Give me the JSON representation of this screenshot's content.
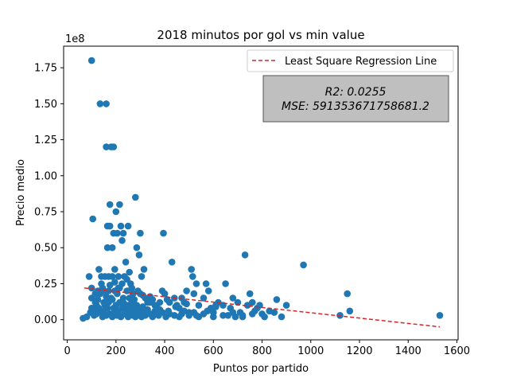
{
  "chart_data": {
    "type": "scatter",
    "title": "2018 minutos por gol vs min value",
    "xlabel": "Puntos por partido",
    "ylabel": "Precio medio",
    "y_offset_label": "1e8",
    "y_scale": 100000000,
    "xlim": [
      -15,
      1605
    ],
    "ylim": [
      -14000000,
      190000000.0
    ],
    "xticks": [
      0,
      200,
      400,
      600,
      800,
      1000,
      1200,
      1400,
      1600
    ],
    "yticks": [
      0,
      25000000,
      50000000,
      75000000,
      100000000,
      125000000,
      150000000,
      175000000
    ],
    "ytick_labels": [
      "0.00",
      "0.25",
      "0.50",
      "0.75",
      "1.00",
      "1.25",
      "1.50",
      "1.75"
    ],
    "grid": false,
    "legend": {
      "placement": "top-right",
      "entries": [
        {
          "label": "Least Square Regression Line",
          "style": "dashed",
          "color": "#d62728"
        }
      ]
    },
    "stats_box": {
      "r2": "R2: 0.0255",
      "mse": "MSE: 591353671758681.2"
    },
    "regression_line": {
      "x": [
        70,
        1530
      ],
      "y": [
        22000000,
        -5000000
      ],
      "color": "#d62728"
    },
    "point_color": "#1f77b4",
    "series": [
      {
        "points": [
          [
            65,
            1000000
          ],
          [
            90,
            30000000
          ],
          [
            100,
            180000000
          ],
          [
            105,
            70000000
          ],
          [
            100,
            15000000
          ],
          [
            95,
            5000000
          ],
          [
            110,
            3000000
          ],
          [
            120,
            10000000
          ],
          [
            125,
            20000000
          ],
          [
            130,
            35000000
          ],
          [
            135,
            150000000
          ],
          [
            140,
            30000000
          ],
          [
            145,
            22000000
          ],
          [
            150,
            12000000
          ],
          [
            155,
            30000000
          ],
          [
            160,
            150000000
          ],
          [
            160,
            120000000
          ],
          [
            165,
            65000000
          ],
          [
            165,
            50000000
          ],
          [
            170,
            30000000
          ],
          [
            170,
            20000000
          ],
          [
            175,
            80000000
          ],
          [
            175,
            65000000
          ],
          [
            180,
            120000000
          ],
          [
            185,
            50000000
          ],
          [
            185,
            30000000
          ],
          [
            190,
            120000000
          ],
          [
            190,
            60000000
          ],
          [
            195,
            35000000
          ],
          [
            195,
            20000000
          ],
          [
            200,
            75000000
          ],
          [
            205,
            60000000
          ],
          [
            210,
            30000000
          ],
          [
            210,
            22000000
          ],
          [
            215,
            80000000
          ],
          [
            220,
            65000000
          ],
          [
            225,
            55000000
          ],
          [
            225,
            25000000
          ],
          [
            230,
            60000000
          ],
          [
            235,
            30000000
          ],
          [
            240,
            40000000
          ],
          [
            245,
            20000000
          ],
          [
            250,
            65000000
          ],
          [
            255,
            33000000
          ],
          [
            260,
            25000000
          ],
          [
            265,
            22000000
          ],
          [
            270,
            18000000
          ],
          [
            280,
            85000000
          ],
          [
            285,
            50000000
          ],
          [
            290,
            20000000
          ],
          [
            295,
            45000000
          ],
          [
            300,
            60000000
          ],
          [
            305,
            30000000
          ],
          [
            310,
            17000000
          ],
          [
            315,
            35000000
          ],
          [
            320,
            15000000
          ],
          [
            330,
            12000000
          ],
          [
            340,
            12000000
          ],
          [
            350,
            14000000
          ],
          [
            360,
            10000000
          ],
          [
            370,
            8000000
          ],
          [
            380,
            7000000
          ],
          [
            390,
            20000000
          ],
          [
            395,
            60000000
          ],
          [
            400,
            18000000
          ],
          [
            410,
            14000000
          ],
          [
            420,
            12000000
          ],
          [
            430,
            40000000
          ],
          [
            440,
            15000000
          ],
          [
            450,
            10000000
          ],
          [
            460,
            8000000
          ],
          [
            470,
            15000000
          ],
          [
            480,
            12000000
          ],
          [
            490,
            20000000
          ],
          [
            500,
            5000000
          ],
          [
            510,
            35000000
          ],
          [
            515,
            30000000
          ],
          [
            520,
            18000000
          ],
          [
            530,
            25000000
          ],
          [
            540,
            10000000
          ],
          [
            560,
            15000000
          ],
          [
            570,
            25000000
          ],
          [
            580,
            20000000
          ],
          [
            590,
            8000000
          ],
          [
            600,
            5000000
          ],
          [
            610,
            10000000
          ],
          [
            620,
            12000000
          ],
          [
            640,
            10000000
          ],
          [
            650,
            25000000
          ],
          [
            660,
            3000000
          ],
          [
            670,
            8000000
          ],
          [
            680,
            15000000
          ],
          [
            690,
            2000000
          ],
          [
            700,
            12000000
          ],
          [
            710,
            5000000
          ],
          [
            720,
            2000000
          ],
          [
            730,
            45000000
          ],
          [
            740,
            10000000
          ],
          [
            750,
            18000000
          ],
          [
            760,
            12000000
          ],
          [
            770,
            6000000
          ],
          [
            780,
            8000000
          ],
          [
            790,
            10000000
          ],
          [
            800,
            4000000
          ],
          [
            810,
            2000000
          ],
          [
            830,
            6000000
          ],
          [
            850,
            5000000
          ],
          [
            860,
            14000000
          ],
          [
            880,
            2000000
          ],
          [
            900,
            10000000
          ],
          [
            970,
            38000000
          ],
          [
            1120,
            3000000
          ],
          [
            1150,
            18000000
          ],
          [
            1160,
            6000000
          ],
          [
            1530,
            3000000
          ],
          [
            80,
            2000000
          ],
          [
            100,
            8000000
          ],
          [
            110,
            6000000
          ],
          [
            115,
            12000000
          ],
          [
            120,
            4000000
          ],
          [
            130,
            8000000
          ],
          [
            135,
            18000000
          ],
          [
            140,
            5000000
          ],
          [
            145,
            2000000
          ],
          [
            150,
            6000000
          ],
          [
            155,
            10000000
          ],
          [
            160,
            3000000
          ],
          [
            165,
            8000000
          ],
          [
            170,
            12000000
          ],
          [
            175,
            4000000
          ],
          [
            180,
            15000000
          ],
          [
            185,
            2000000
          ],
          [
            190,
            8000000
          ],
          [
            195,
            5000000
          ],
          [
            200,
            10000000
          ],
          [
            205,
            3000000
          ],
          [
            210,
            6000000
          ],
          [
            215,
            12000000
          ],
          [
            220,
            2000000
          ],
          [
            225,
            8000000
          ],
          [
            230,
            15000000
          ],
          [
            235,
            4000000
          ],
          [
            240,
            6000000
          ],
          [
            245,
            10000000
          ],
          [
            250,
            2000000
          ],
          [
            255,
            8000000
          ],
          [
            260,
            5000000
          ],
          [
            265,
            12000000
          ],
          [
            270,
            3000000
          ],
          [
            275,
            7000000
          ],
          [
            280,
            2000000
          ],
          [
            285,
            10000000
          ],
          [
            290,
            4000000
          ],
          [
            295,
            6000000
          ],
          [
            300,
            8000000
          ],
          [
            305,
            2000000
          ],
          [
            310,
            5000000
          ],
          [
            320,
            3000000
          ],
          [
            330,
            7000000
          ],
          [
            340,
            4000000
          ],
          [
            350,
            2000000
          ],
          [
            360,
            6000000
          ],
          [
            375,
            3000000
          ],
          [
            390,
            5000000
          ],
          [
            405,
            2000000
          ],
          [
            420,
            4000000
          ],
          [
            440,
            3000000
          ],
          [
            460,
            2000000
          ],
          [
            480,
            6000000
          ],
          [
            500,
            3000000
          ],
          [
            520,
            5000000
          ],
          [
            540,
            2000000
          ],
          [
            560,
            4000000
          ],
          [
            600,
            2000000
          ],
          [
            640,
            3000000
          ],
          [
            680,
            5000000
          ],
          [
            720,
            3000000
          ],
          [
            760,
            4000000
          ],
          [
            100,
            22000000
          ],
          [
            115,
            18000000
          ],
          [
            125,
            14000000
          ],
          [
            140,
            25000000
          ],
          [
            150,
            20000000
          ],
          [
            160,
            16000000
          ],
          [
            175,
            24000000
          ],
          [
            185,
            14000000
          ],
          [
            195,
            26000000
          ],
          [
            205,
            18000000
          ],
          [
            215,
            22000000
          ],
          [
            230,
            12000000
          ],
          [
            245,
            28000000
          ],
          [
            255,
            15000000
          ],
          [
            265,
            10000000
          ],
          [
            275,
            14000000
          ],
          [
            300,
            18000000
          ],
          [
            310,
            9000000
          ],
          [
            340,
            16000000
          ],
          [
            365,
            5000000
          ],
          [
            380,
            12000000
          ],
          [
            415,
            6000000
          ],
          [
            445,
            9000000
          ],
          [
            470,
            4000000
          ],
          [
            490,
            11000000
          ],
          [
            530,
            3000000
          ],
          [
            575,
            6000000
          ],
          [
            610,
            9000000
          ]
        ]
      }
    ]
  }
}
